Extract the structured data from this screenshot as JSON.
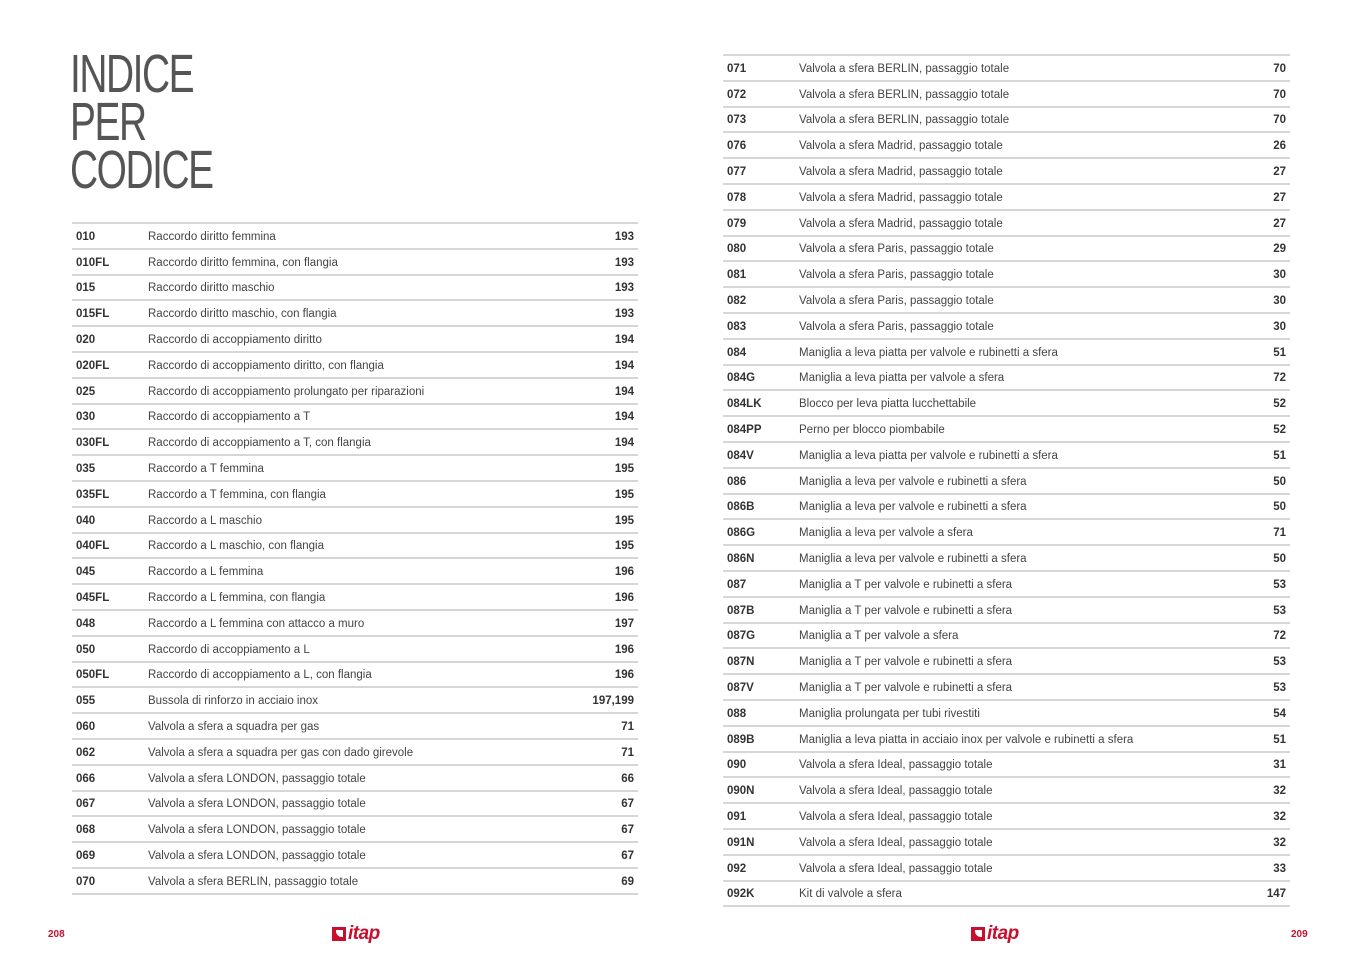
{
  "title": [
    "INDICE",
    "PER",
    "CODICE"
  ],
  "left_table": [
    [
      "010",
      "Raccordo diritto femmina",
      "193"
    ],
    [
      "010FL",
      "Raccordo diritto femmina, con flangia",
      "193"
    ],
    [
      "015",
      "Raccordo diritto maschio",
      "193"
    ],
    [
      "015FL",
      "Raccordo diritto maschio, con flangia",
      "193"
    ],
    [
      "020",
      "Raccordo di accoppiamento diritto",
      "194"
    ],
    [
      "020FL",
      "Raccordo di accoppiamento diritto, con flangia",
      "194"
    ],
    [
      "025",
      "Raccordo di accoppiamento prolungato per riparazioni",
      "194"
    ],
    [
      "030",
      "Raccordo di accoppiamento a T",
      "194"
    ],
    [
      "030FL",
      "Raccordo di accoppiamento a T, con flangia",
      "194"
    ],
    [
      "035",
      "Raccordo a T femmina",
      "195"
    ],
    [
      "035FL",
      "Raccordo a T femmina, con flangia",
      "195"
    ],
    [
      "040",
      "Raccordo a L maschio",
      "195"
    ],
    [
      "040FL",
      "Raccordo a L maschio, con flangia",
      "195"
    ],
    [
      "045",
      "Raccordo a L femmina",
      "196"
    ],
    [
      "045FL",
      "Raccordo a L femmina, con flangia",
      "196"
    ],
    [
      "048",
      "Raccordo a L femmina con attacco a muro",
      "197"
    ],
    [
      "050",
      "Raccordo di accoppiamento a L",
      "196"
    ],
    [
      "050FL",
      "Raccordo di accoppiamento a L, con flangia",
      "196"
    ],
    [
      "055",
      "Bussola di rinforzo in acciaio inox",
      "197,199"
    ],
    [
      "060",
      "Valvola a sfera a squadra per gas",
      "71"
    ],
    [
      "062",
      "Valvola a sfera a squadra per gas con dado girevole",
      "71"
    ],
    [
      "066",
      "Valvola a sfera LONDON, passaggio totale",
      "66"
    ],
    [
      "067",
      "Valvola a sfera LONDON, passaggio totale",
      "67"
    ],
    [
      "068",
      "Valvola a sfera LONDON, passaggio totale",
      "67"
    ],
    [
      "069",
      "Valvola a sfera LONDON, passaggio totale",
      "67"
    ],
    [
      "070",
      "Valvola a sfera BERLIN, passaggio totale",
      "69"
    ]
  ],
  "right_table": [
    [
      "071",
      "Valvola a sfera BERLIN, passaggio totale",
      "70"
    ],
    [
      "072",
      "Valvola a sfera BERLIN, passaggio totale",
      "70"
    ],
    [
      "073",
      "Valvola a sfera BERLIN, passaggio totale",
      "70"
    ],
    [
      "076",
      "Valvola a sfera Madrid, passaggio totale",
      "26"
    ],
    [
      "077",
      "Valvola a sfera Madrid, passaggio totale",
      "27"
    ],
    [
      "078",
      "Valvola a sfera Madrid, passaggio totale",
      "27"
    ],
    [
      "079",
      "Valvola a sfera Madrid, passaggio totale",
      "27"
    ],
    [
      "080",
      "Valvola a sfera Paris, passaggio totale",
      "29"
    ],
    [
      "081",
      "Valvola a sfera Paris, passaggio totale",
      "30"
    ],
    [
      "082",
      "Valvola a sfera Paris, passaggio totale",
      "30"
    ],
    [
      "083",
      "Valvola a sfera Paris, passaggio totale",
      "30"
    ],
    [
      "084",
      "Maniglia a leva piatta per valvole e rubinetti a sfera",
      "51"
    ],
    [
      "084G",
      "Maniglia a leva piatta per valvole a sfera",
      "72"
    ],
    [
      "084LK",
      "Blocco per leva piatta lucchettabile",
      "52"
    ],
    [
      "084PP",
      "Perno per blocco piombabile",
      "52"
    ],
    [
      "084V",
      "Maniglia a leva piatta per valvole e rubinetti a sfera",
      "51"
    ],
    [
      "086",
      "Maniglia a leva per valvole e rubinetti a sfera",
      "50"
    ],
    [
      "086B",
      "Maniglia a leva per valvole e rubinetti a sfera",
      "50"
    ],
    [
      "086G",
      "Maniglia a leva per valvole a sfera",
      "71"
    ],
    [
      "086N",
      "Maniglia a leva per valvole e rubinetti a sfera",
      "50"
    ],
    [
      "087",
      "Maniglia a T per valvole e rubinetti a sfera",
      "53"
    ],
    [
      "087B",
      "Maniglia a T per valvole e rubinetti a sfera",
      "53"
    ],
    [
      "087G",
      "Maniglia a T per valvole a sfera",
      "72"
    ],
    [
      "087N",
      "Maniglia a T per valvole e rubinetti a sfera",
      "53"
    ],
    [
      "087V",
      "Maniglia a T per valvole e rubinetti a sfera",
      "53"
    ],
    [
      "088",
      "Maniglia prolungata per tubi rivestiti",
      "54"
    ],
    [
      "089B",
      "Maniglia a leva piatta in acciaio inox per valvole e rubinetti a sfera",
      "51"
    ],
    [
      "090",
      "Valvola a sfera Ideal, passaggio totale",
      "31"
    ],
    [
      "090N",
      "Valvola a sfera Ideal, passaggio totale",
      "32"
    ],
    [
      "091",
      "Valvola a sfera Ideal, passaggio totale",
      "32"
    ],
    [
      "091N",
      "Valvola a sfera Ideal, passaggio totale",
      "32"
    ],
    [
      "092",
      "Valvola a sfera Ideal, passaggio totale",
      "33"
    ],
    [
      "092K",
      "Kit di valvole a sfera",
      "147"
    ]
  ],
  "footer": {
    "left_page": "208",
    "right_page": "209",
    "logo": "itap"
  },
  "colors": {
    "brand": "#c8102e"
  }
}
